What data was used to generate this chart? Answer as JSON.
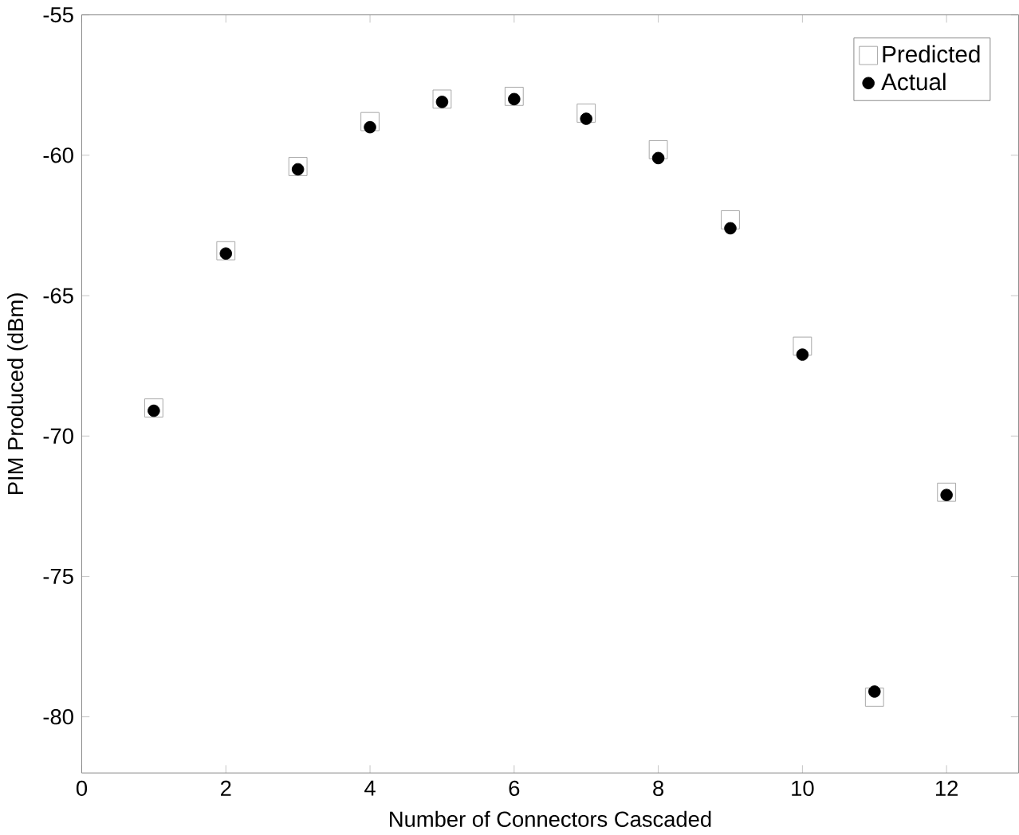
{
  "chart_data": {
    "type": "scatter",
    "xlabel": "Number of Connectors Cascaded",
    "ylabel": "PIM Produced (dBm)",
    "x": [
      1,
      2,
      3,
      4,
      5,
      6,
      7,
      8,
      9,
      10,
      11,
      12
    ],
    "series": [
      {
        "name": "Predicted",
        "color": "#a0a0a0",
        "marker": "square",
        "values": [
          -69.0,
          -63.4,
          -60.4,
          -58.8,
          -58.0,
          -57.9,
          -58.5,
          -59.8,
          -62.3,
          -66.8,
          -79.3,
          -72.0
        ]
      },
      {
        "name": "Actual",
        "color": "#000000",
        "marker": "circle",
        "values": [
          -69.1,
          -63.5,
          -60.5,
          -59.0,
          -58.1,
          -58.0,
          -58.7,
          -60.1,
          -62.6,
          -67.1,
          -79.1,
          -72.1
        ]
      }
    ],
    "xlim": [
      0,
      13
    ],
    "xticks": [
      0,
      2,
      4,
      6,
      8,
      10,
      12
    ],
    "ylim": [
      -82,
      -55
    ],
    "yticks": [
      -80,
      -75,
      -70,
      -65,
      -60,
      -55
    ],
    "grid": false,
    "legend": "top right"
  }
}
